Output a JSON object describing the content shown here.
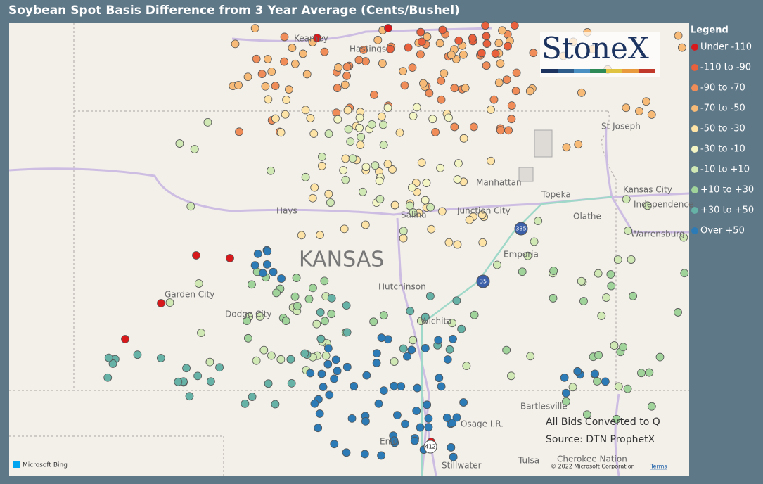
{
  "header": {
    "title": "Soybean Spot Basis Difference from 3 Year Average (Cents/Bushel)"
  },
  "legend": {
    "title": "Legend",
    "items": [
      {
        "label": "Under -110",
        "color": "#d7191c"
      },
      {
        "label": "-110 to -90",
        "color": "#e8603c"
      },
      {
        "label": "-90 to -70",
        "color": "#f08c58"
      },
      {
        "label": "-70 to -50",
        "color": "#f7bb77"
      },
      {
        "label": "-50 to -30",
        "color": "#fde3a5"
      },
      {
        "label": "-30 to -10",
        "color": "#f4f5c4"
      },
      {
        "label": "-10 to +10",
        "color": "#cfe8b4"
      },
      {
        "label": "+10 to +30",
        "color": "#9fd39a"
      },
      {
        "label": "+30 to +50",
        "color": "#66b2a6"
      },
      {
        "label": "Over +50",
        "color": "#2c7bb6"
      }
    ]
  },
  "map": {
    "labels": [
      "Kearney",
      "Hastings",
      "St Joseph",
      "Manhattan",
      "Topeka",
      "Kansas City",
      "Independence",
      "Olathe",
      "Hays",
      "Salina",
      "Junction City",
      "Warrensburg",
      "Emporia",
      "KANSAS",
      "Garden City",
      "Dodge City",
      "Hutchinson",
      "Wichita",
      "Bartlesville",
      "Osage I.R.",
      "Enid",
      "Stillwater",
      "Tulsa",
      "Cherokee Nation"
    ],
    "shields": [
      "335",
      "35",
      "412"
    ],
    "logo": "StoneX",
    "notes": [
      "All Bids Converted to Q",
      "Source: DTN ProphetX"
    ],
    "attribution": {
      "provider": "Microsoft Bing",
      "copyright": "© 2022 Microsoft Corporation",
      "terms": "Terms"
    }
  }
}
